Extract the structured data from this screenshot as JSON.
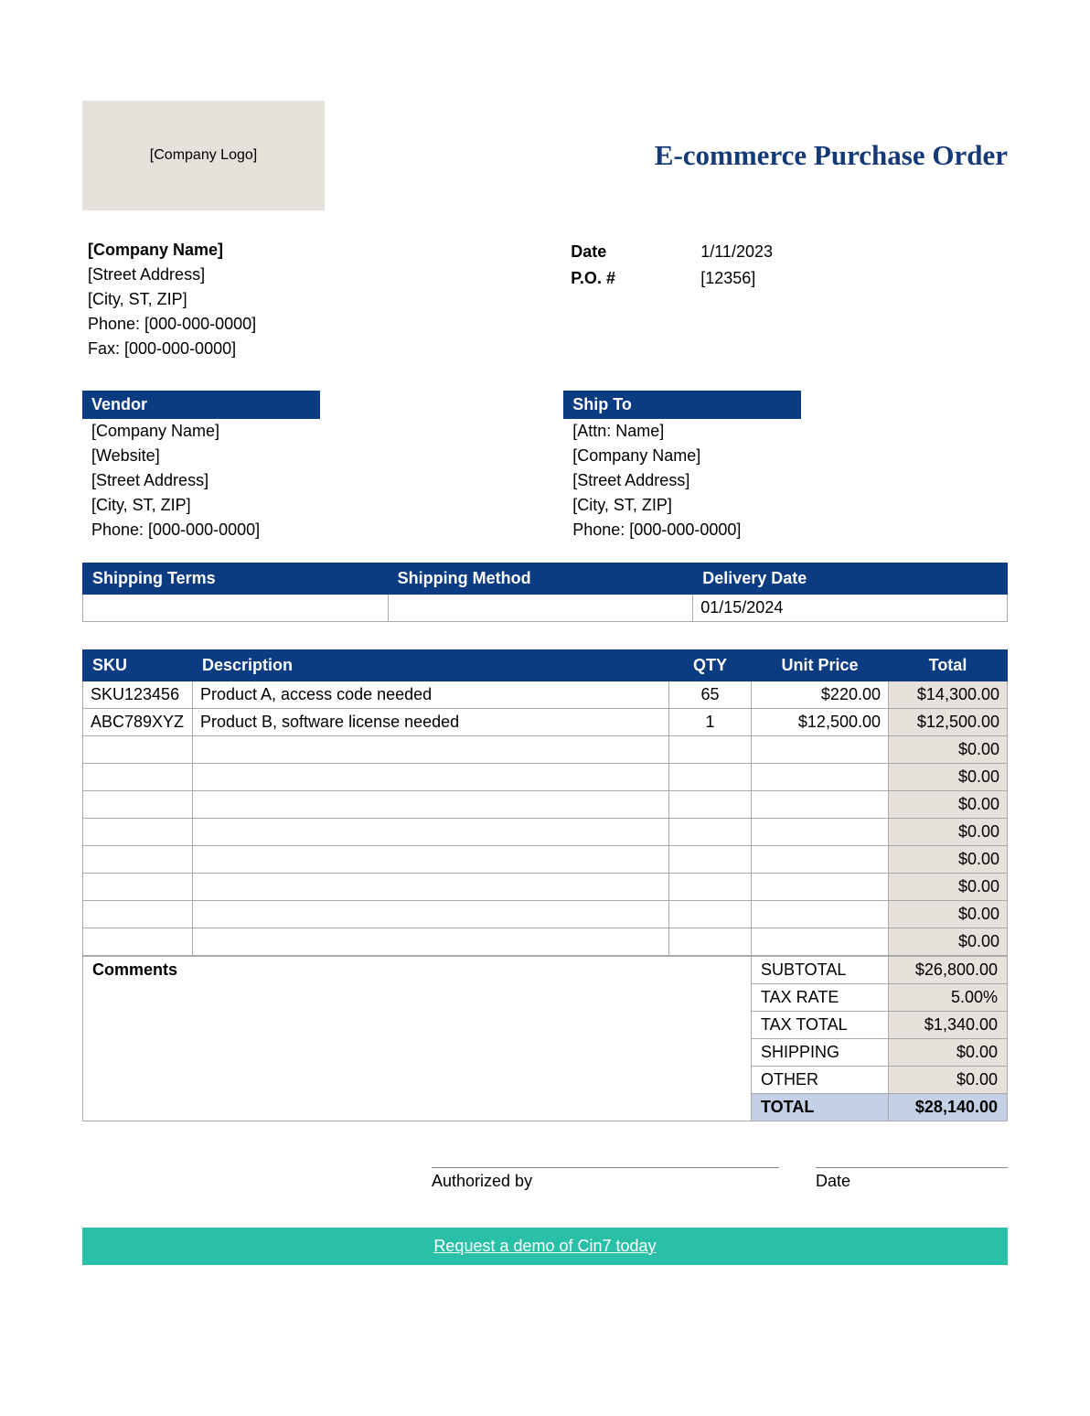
{
  "header": {
    "logo_placeholder": "[Company Logo]",
    "title": "E-commerce Purchase Order"
  },
  "company": {
    "name": "[Company Name]",
    "street": "[Street Address]",
    "city": "[City, ST, ZIP]",
    "phone": "Phone: [000-000-0000]",
    "fax": "Fax: [000-000-0000]"
  },
  "meta": {
    "date_label": "Date",
    "date_value": "1/11/2023",
    "po_label": "P.O. #",
    "po_value": "[12356]"
  },
  "vendor": {
    "header": "Vendor",
    "name": "[Company Name]",
    "website": "[Website]",
    "street": "[Street Address]",
    "city": "[City, ST, ZIP]",
    "phone": "Phone: [000-000-0000]"
  },
  "shipto": {
    "header": "Ship To",
    "attn": "[Attn: Name]",
    "name": "[Company Name]",
    "street": "[Street Address]",
    "city": "[City, ST, ZIP]",
    "phone": "Phone: [000-000-0000]"
  },
  "shipping": {
    "col1": "Shipping Terms",
    "col2": "Shipping Method",
    "col3": "Delivery Date",
    "terms": "",
    "method": "",
    "delivery": "01/15/2024"
  },
  "items": {
    "headers": {
      "sku": "SKU",
      "desc": "Description",
      "qty": "QTY",
      "unit": "Unit Price",
      "total": "Total"
    },
    "rows": [
      {
        "sku": "SKU123456",
        "desc": "Product A, access code needed",
        "qty": "65",
        "unit": "$220.00",
        "total": "$14,300.00"
      },
      {
        "sku": "ABC789XYZ",
        "desc": "Product B, software license needed",
        "qty": "1",
        "unit": "$12,500.00",
        "total": "$12,500.00"
      },
      {
        "sku": "",
        "desc": "",
        "qty": "",
        "unit": "",
        "total": "$0.00"
      },
      {
        "sku": "",
        "desc": "",
        "qty": "",
        "unit": "",
        "total": "$0.00"
      },
      {
        "sku": "",
        "desc": "",
        "qty": "",
        "unit": "",
        "total": "$0.00"
      },
      {
        "sku": "",
        "desc": "",
        "qty": "",
        "unit": "",
        "total": "$0.00"
      },
      {
        "sku": "",
        "desc": "",
        "qty": "",
        "unit": "",
        "total": "$0.00"
      },
      {
        "sku": "",
        "desc": "",
        "qty": "",
        "unit": "",
        "total": "$0.00"
      },
      {
        "sku": "",
        "desc": "",
        "qty": "",
        "unit": "",
        "total": "$0.00"
      },
      {
        "sku": "",
        "desc": "",
        "qty": "",
        "unit": "",
        "total": "$0.00"
      }
    ]
  },
  "summary": {
    "comments_label": "Comments",
    "rows": [
      {
        "label": "SUBTOTAL",
        "value": "$26,800.00"
      },
      {
        "label": "TAX RATE",
        "value": "5.00%"
      },
      {
        "label": "TAX TOTAL",
        "value": "$1,340.00"
      },
      {
        "label": "SHIPPING",
        "value": "$0.00"
      },
      {
        "label": "OTHER",
        "value": "$0.00"
      }
    ],
    "total_label": "TOTAL",
    "total_value": "$28,140.00"
  },
  "signature": {
    "authorized": "Authorized by",
    "date": "Date"
  },
  "demo": {
    "text": "Request a demo of Cin7 today"
  },
  "colors": {
    "header_blue": "#0b3b80",
    "title_blue": "#143a7a",
    "logo_bg": "#e6e1db",
    "shaded": "#e6e1db",
    "total_bg": "#c3d0e6",
    "demo_bg": "#29c0a7"
  }
}
